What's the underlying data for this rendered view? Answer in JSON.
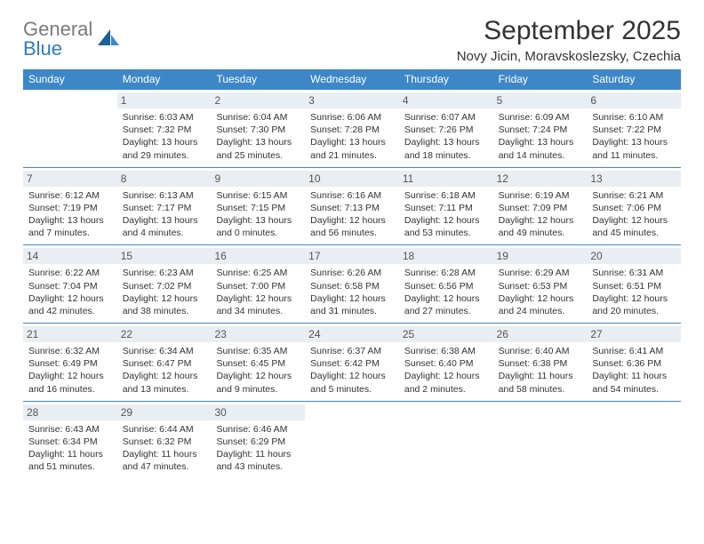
{
  "brand": {
    "part1": "General",
    "part2": "Blue"
  },
  "title": "September 2025",
  "location": "Novy Jicin, Moravskoslezsky, Czechia",
  "colors": {
    "header_bg": "#3d87c7",
    "header_text": "#ffffff",
    "daynum_bg": "#e9eef2",
    "border": "#3d87c7",
    "brand_grey": "#7a7a7a",
    "brand_blue": "#2f7bbf"
  },
  "weekdays": [
    "Sunday",
    "Monday",
    "Tuesday",
    "Wednesday",
    "Thursday",
    "Friday",
    "Saturday"
  ],
  "weeks": [
    [
      {
        "n": "",
        "sr": "",
        "ss": "",
        "dl1": "",
        "dl2": ""
      },
      {
        "n": "1",
        "sr": "Sunrise: 6:03 AM",
        "ss": "Sunset: 7:32 PM",
        "dl1": "Daylight: 13 hours",
        "dl2": "and 29 minutes."
      },
      {
        "n": "2",
        "sr": "Sunrise: 6:04 AM",
        "ss": "Sunset: 7:30 PM",
        "dl1": "Daylight: 13 hours",
        "dl2": "and 25 minutes."
      },
      {
        "n": "3",
        "sr": "Sunrise: 6:06 AM",
        "ss": "Sunset: 7:28 PM",
        "dl1": "Daylight: 13 hours",
        "dl2": "and 21 minutes."
      },
      {
        "n": "4",
        "sr": "Sunrise: 6:07 AM",
        "ss": "Sunset: 7:26 PM",
        "dl1": "Daylight: 13 hours",
        "dl2": "and 18 minutes."
      },
      {
        "n": "5",
        "sr": "Sunrise: 6:09 AM",
        "ss": "Sunset: 7:24 PM",
        "dl1": "Daylight: 13 hours",
        "dl2": "and 14 minutes."
      },
      {
        "n": "6",
        "sr": "Sunrise: 6:10 AM",
        "ss": "Sunset: 7:22 PM",
        "dl1": "Daylight: 13 hours",
        "dl2": "and 11 minutes."
      }
    ],
    [
      {
        "n": "7",
        "sr": "Sunrise: 6:12 AM",
        "ss": "Sunset: 7:19 PM",
        "dl1": "Daylight: 13 hours",
        "dl2": "and 7 minutes."
      },
      {
        "n": "8",
        "sr": "Sunrise: 6:13 AM",
        "ss": "Sunset: 7:17 PM",
        "dl1": "Daylight: 13 hours",
        "dl2": "and 4 minutes."
      },
      {
        "n": "9",
        "sr": "Sunrise: 6:15 AM",
        "ss": "Sunset: 7:15 PM",
        "dl1": "Daylight: 13 hours",
        "dl2": "and 0 minutes."
      },
      {
        "n": "10",
        "sr": "Sunrise: 6:16 AM",
        "ss": "Sunset: 7:13 PM",
        "dl1": "Daylight: 12 hours",
        "dl2": "and 56 minutes."
      },
      {
        "n": "11",
        "sr": "Sunrise: 6:18 AM",
        "ss": "Sunset: 7:11 PM",
        "dl1": "Daylight: 12 hours",
        "dl2": "and 53 minutes."
      },
      {
        "n": "12",
        "sr": "Sunrise: 6:19 AM",
        "ss": "Sunset: 7:09 PM",
        "dl1": "Daylight: 12 hours",
        "dl2": "and 49 minutes."
      },
      {
        "n": "13",
        "sr": "Sunrise: 6:21 AM",
        "ss": "Sunset: 7:06 PM",
        "dl1": "Daylight: 12 hours",
        "dl2": "and 45 minutes."
      }
    ],
    [
      {
        "n": "14",
        "sr": "Sunrise: 6:22 AM",
        "ss": "Sunset: 7:04 PM",
        "dl1": "Daylight: 12 hours",
        "dl2": "and 42 minutes."
      },
      {
        "n": "15",
        "sr": "Sunrise: 6:23 AM",
        "ss": "Sunset: 7:02 PM",
        "dl1": "Daylight: 12 hours",
        "dl2": "and 38 minutes."
      },
      {
        "n": "16",
        "sr": "Sunrise: 6:25 AM",
        "ss": "Sunset: 7:00 PM",
        "dl1": "Daylight: 12 hours",
        "dl2": "and 34 minutes."
      },
      {
        "n": "17",
        "sr": "Sunrise: 6:26 AM",
        "ss": "Sunset: 6:58 PM",
        "dl1": "Daylight: 12 hours",
        "dl2": "and 31 minutes."
      },
      {
        "n": "18",
        "sr": "Sunrise: 6:28 AM",
        "ss": "Sunset: 6:56 PM",
        "dl1": "Daylight: 12 hours",
        "dl2": "and 27 minutes."
      },
      {
        "n": "19",
        "sr": "Sunrise: 6:29 AM",
        "ss": "Sunset: 6:53 PM",
        "dl1": "Daylight: 12 hours",
        "dl2": "and 24 minutes."
      },
      {
        "n": "20",
        "sr": "Sunrise: 6:31 AM",
        "ss": "Sunset: 6:51 PM",
        "dl1": "Daylight: 12 hours",
        "dl2": "and 20 minutes."
      }
    ],
    [
      {
        "n": "21",
        "sr": "Sunrise: 6:32 AM",
        "ss": "Sunset: 6:49 PM",
        "dl1": "Daylight: 12 hours",
        "dl2": "and 16 minutes."
      },
      {
        "n": "22",
        "sr": "Sunrise: 6:34 AM",
        "ss": "Sunset: 6:47 PM",
        "dl1": "Daylight: 12 hours",
        "dl2": "and 13 minutes."
      },
      {
        "n": "23",
        "sr": "Sunrise: 6:35 AM",
        "ss": "Sunset: 6:45 PM",
        "dl1": "Daylight: 12 hours",
        "dl2": "and 9 minutes."
      },
      {
        "n": "24",
        "sr": "Sunrise: 6:37 AM",
        "ss": "Sunset: 6:42 PM",
        "dl1": "Daylight: 12 hours",
        "dl2": "and 5 minutes."
      },
      {
        "n": "25",
        "sr": "Sunrise: 6:38 AM",
        "ss": "Sunset: 6:40 PM",
        "dl1": "Daylight: 12 hours",
        "dl2": "and 2 minutes."
      },
      {
        "n": "26",
        "sr": "Sunrise: 6:40 AM",
        "ss": "Sunset: 6:38 PM",
        "dl1": "Daylight: 11 hours",
        "dl2": "and 58 minutes."
      },
      {
        "n": "27",
        "sr": "Sunrise: 6:41 AM",
        "ss": "Sunset: 6:36 PM",
        "dl1": "Daylight: 11 hours",
        "dl2": "and 54 minutes."
      }
    ],
    [
      {
        "n": "28",
        "sr": "Sunrise: 6:43 AM",
        "ss": "Sunset: 6:34 PM",
        "dl1": "Daylight: 11 hours",
        "dl2": "and 51 minutes."
      },
      {
        "n": "29",
        "sr": "Sunrise: 6:44 AM",
        "ss": "Sunset: 6:32 PM",
        "dl1": "Daylight: 11 hours",
        "dl2": "and 47 minutes."
      },
      {
        "n": "30",
        "sr": "Sunrise: 6:46 AM",
        "ss": "Sunset: 6:29 PM",
        "dl1": "Daylight: 11 hours",
        "dl2": "and 43 minutes."
      },
      {
        "n": "",
        "sr": "",
        "ss": "",
        "dl1": "",
        "dl2": ""
      },
      {
        "n": "",
        "sr": "",
        "ss": "",
        "dl1": "",
        "dl2": ""
      },
      {
        "n": "",
        "sr": "",
        "ss": "",
        "dl1": "",
        "dl2": ""
      },
      {
        "n": "",
        "sr": "",
        "ss": "",
        "dl1": "",
        "dl2": ""
      }
    ]
  ]
}
